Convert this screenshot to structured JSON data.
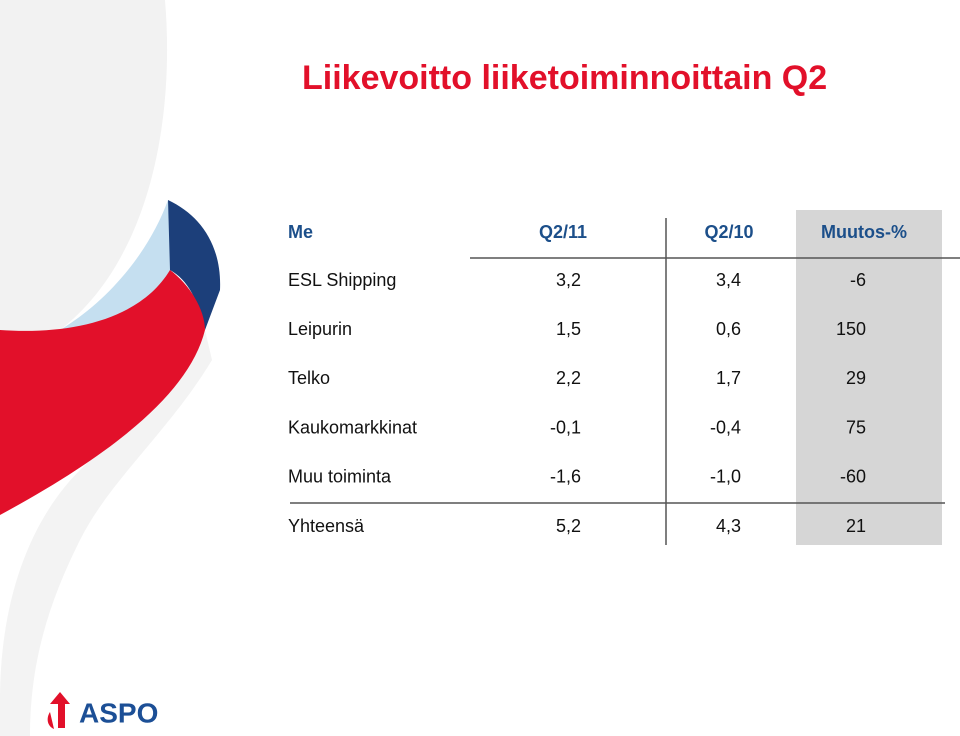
{
  "title": "Liikevoitto liiketoiminnoittain Q2",
  "table": {
    "header": [
      "Me",
      "Q2/11",
      "Q2/10",
      "Muutos-%"
    ],
    "rows": [
      [
        "ESL Shipping",
        "3,2",
        "3,4",
        "-6"
      ],
      [
        "Leipurin",
        "1,5",
        "0,6",
        "150"
      ],
      [
        "Telko",
        "2,2",
        "1,7",
        "29"
      ],
      [
        "Kaukomarkkinat",
        "-0,1",
        "-0,4",
        "75"
      ],
      [
        "Muu toiminta",
        "-1,6",
        "-1,0",
        "-60"
      ],
      [
        "Yhteensä",
        "5,2",
        "4,3",
        "21"
      ]
    ]
  },
  "logo": "ASPO"
}
